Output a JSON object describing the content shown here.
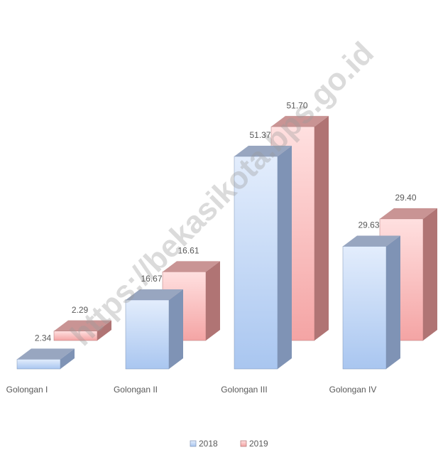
{
  "chart_data": {
    "type": "bar3d",
    "categories": [
      "Golongan I",
      "Golongan II",
      "Golongan III",
      "Golongan IV"
    ],
    "series": [
      {
        "name": "2018",
        "color": "#a9c6f0",
        "values": [
          2.34,
          16.67,
          51.37,
          29.63
        ],
        "value_labels": [
          "2.34",
          "16.67",
          "51.37",
          "29.63"
        ]
      },
      {
        "name": "2019",
        "color": "#f4a4a4",
        "values": [
          2.29,
          16.61,
          51.7,
          29.4
        ],
        "value_labels": [
          "2.29",
          "16.61",
          "51.70",
          "29.40"
        ]
      }
    ],
    "legend": "bottom",
    "watermark": "https://bekasikota.bps.go.id"
  }
}
